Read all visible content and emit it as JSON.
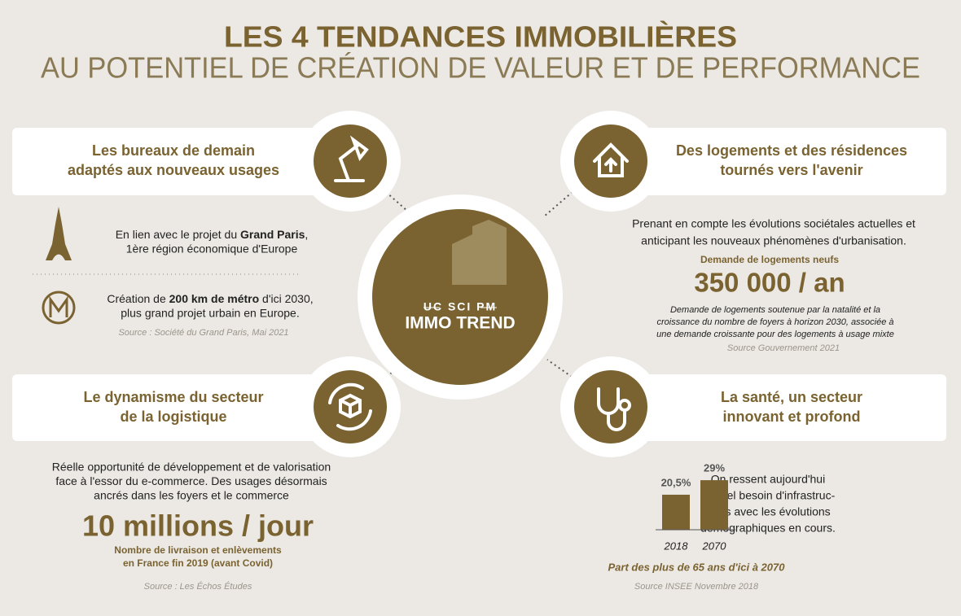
{
  "header": {
    "title": "LES 4 TENDANCES IMMOBILIÈRES",
    "subtitle": "AU POTENTIEL DE CRÉATION DE VALEUR ET DE PERFORMANCE"
  },
  "center": {
    "brand_top": "UC SCI PM",
    "brand_bottom": "IMMO TREND"
  },
  "offices": {
    "title": [
      "Les bureaux de demain",
      "adaptés aux nouveaux usages"
    ],
    "item1": {
      "before": "En lien avec le projet du ",
      "strong": "Grand Paris",
      "after": ",",
      "line2": "1ère région économique d'Europe"
    },
    "item2": {
      "before": "Création de ",
      "strong": "200 km de métro",
      "after": " d'ici 2030,",
      "line2": "plus grand projet urbain en Europe."
    },
    "source": "Source : Société du Grand Paris, Mai 2021"
  },
  "housing": {
    "title": [
      "Des logements et des résidences",
      "tournés vers l'avenir"
    ],
    "intro": [
      "Prenant en compte les évolutions sociétales actuelles et",
      "anticipant les nouveaux phénomènes d'urbanisation."
    ],
    "stat_label": "Demande de logements neufs",
    "stat": "350 000 / an",
    "note": [
      "Demande de logements soutenue par la natalité et la",
      "croissance du nombre de foyers à horizon 2030, associée à",
      "une demande croissante pour des logements à usage mixte"
    ],
    "source": "Source Gouvernement 2021"
  },
  "logistics": {
    "title": [
      "Le dynamisme du secteur",
      "de la logistique"
    ],
    "body": [
      "Réelle opportunité de développement et de valorisation",
      "face à l'essor du e-commerce. Des usages désormais",
      "ancrés dans les foyers et le commerce"
    ],
    "stat": "10 millions / jour",
    "note": [
      "Nombre de livraison et enlèvements",
      "en France fin 2019 (avant Covid)"
    ],
    "source": "Source : Les Échos Études"
  },
  "health": {
    "title": [
      "La santé, un secteur",
      "innovant et profond"
    ],
    "body": [
      "On ressent aujourd'hui",
      "un réel besoin d'infrastruc-",
      "tures avec les évolutions",
      "démographiques en cours."
    ],
    "source": "Source INSEE Novembre 2018"
  },
  "chart_data": {
    "type": "bar",
    "title": "Part des plus de 65 ans d'ici à 2070",
    "categories": [
      "2018",
      "2070"
    ],
    "values": [
      20.5,
      29
    ],
    "value_labels": [
      "20,5%",
      "29%"
    ],
    "color": "#7a6331"
  }
}
